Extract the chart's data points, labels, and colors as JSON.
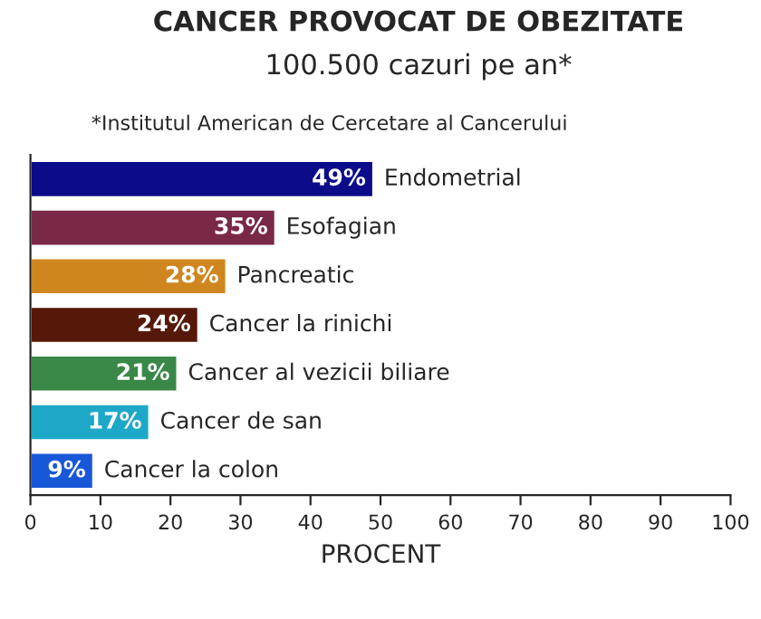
{
  "chart_data": {
    "type": "bar",
    "orientation": "horizontal",
    "title": "CANCER PROVOCAT DE OBEZITATE",
    "subtitle": "100.500 cazuri pe an*",
    "annotations": [
      "*Institutul American de Cercetare al Cancerului"
    ],
    "xlabel": "PROCENT",
    "categories": [
      "Endometrial",
      "Esofagian",
      "Pancreatic",
      "Cancer la rinichi",
      "Cancer al vezicii biliare",
      "Cancer de san",
      "Cancer la colon"
    ],
    "values": [
      49,
      35,
      28,
      24,
      21,
      17,
      9
    ],
    "value_labels": [
      "49%",
      "35%",
      "28%",
      "24%",
      "21%",
      "17%",
      "9%"
    ],
    "colors": [
      "#0c0c8a",
      "#7a2848",
      "#d0861e",
      "#561808",
      "#3a8848",
      "#1ea8c8",
      "#1858d8"
    ],
    "xlim": [
      0,
      100
    ],
    "xticks": [
      0,
      10,
      20,
      30,
      40,
      50,
      60,
      70,
      80,
      90,
      100
    ],
    "tick_labels": "x",
    "grid": false,
    "legend": false
  }
}
